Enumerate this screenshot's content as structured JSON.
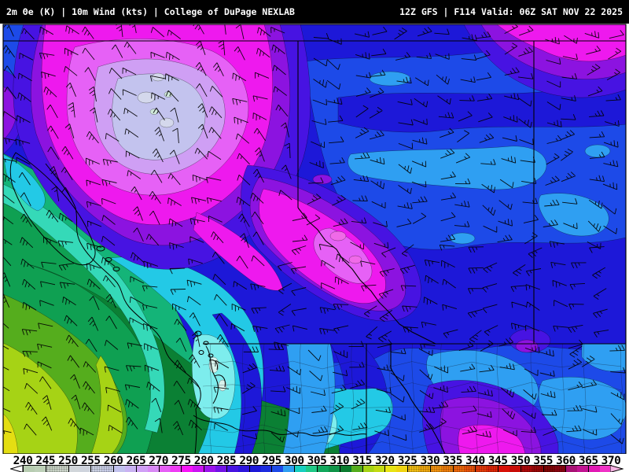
{
  "header": {
    "left_title": "2m Θe (K) | 10m Wind (kts) | College of DuPage NEXLAB",
    "right_title": "12Z GFS | F114 Valid: 06Z SAT NOV 22 2025"
  },
  "map": {
    "field": "2m Equivalent Potential Temperature (K)",
    "overlay": "10m Wind (kts)",
    "units": "K",
    "palette": {
      "dark": "#1d18d8",
      "royal": "#1d4ae8",
      "sky": "#2f9ff2",
      "cyan": "#23c9e6",
      "ltcyan": "#7deded",
      "paleteal": "#d8f2ec",
      "mint": "#35d9b8",
      "teal": "#14b478",
      "seagreen": "#0fa052",
      "dkgreen": "#0b8034",
      "grass": "#55ad1d",
      "ygreen": "#a6d315",
      "yellow": "#e4de12",
      "indigo": "#4713e2",
      "violet": "#8c13e0",
      "purple": "#6614d8",
      "magenta": "#ee19ee",
      "orchid": "#e661f6",
      "paleorchid": "#cf9ff4",
      "periwinkle": "#c3c3ee",
      "palegray": "#d4d8ec",
      "palemint": "#cfe8da",
      "pink": "#f06ae8"
    }
  },
  "colorbar": {
    "tick_labels": [
      "240",
      "245",
      "250",
      "255",
      "260",
      "265",
      "270",
      "275",
      "280",
      "285",
      "290",
      "295",
      "300",
      "305",
      "310",
      "315",
      "320",
      "325",
      "330",
      "335",
      "340",
      "345",
      "350",
      "355",
      "360",
      "365",
      "370"
    ],
    "arrow_left_color": "#ffffff",
    "arrow_right_color": "#f6b2e2",
    "segments": [
      {
        "value": 240,
        "c1": "#b7ccb1",
        "c2": "#bdd0b8",
        "stipple": false
      },
      {
        "value": 245,
        "c1": "#c6d1c3",
        "c2": "#cbd4c9",
        "stipple": true
      },
      {
        "value": 250,
        "c1": "#d1d6da",
        "c2": "#cfd4dd",
        "stipple": false
      },
      {
        "value": 255,
        "c1": "#cbd1e4",
        "c2": "#c8cde8",
        "stipple": true
      },
      {
        "value": 260,
        "c1": "#c2c2ee",
        "c2": "#c9b2f2",
        "stipple": false
      },
      {
        "value": 265,
        "c1": "#d0a0f6",
        "c2": "#d989f5",
        "stipple": false
      },
      {
        "value": 270,
        "c1": "#e65ff6",
        "c2": "#ef3df5",
        "stipple": false
      },
      {
        "value": 275,
        "c1": "#f813f8",
        "c2": "#cc13f2",
        "stipple": false
      },
      {
        "value": 280,
        "c1": "#9b13ec",
        "c2": "#7213e6",
        "stipple": false
      },
      {
        "value": 285,
        "c1": "#4713e2",
        "c2": "#2e16dd",
        "stipple": false
      },
      {
        "value": 290,
        "c1": "#1d18d8",
        "c2": "#1d2ce0",
        "stipple": false
      },
      {
        "value": 295,
        "c1": "#1d4ae8",
        "c2": "#2f9ff2",
        "stipple": false
      },
      {
        "value": 300,
        "c1": "#17cfc0",
        "c2": "#1fc987",
        "stipple": false
      },
      {
        "value": 305,
        "c1": "#12a85c",
        "c2": "#0f9448",
        "stipple": false
      },
      {
        "value": 310,
        "c1": "#0b7c30",
        "c2": "#55ad1d",
        "stipple": false
      },
      {
        "value": 315,
        "c1": "#a6d315",
        "c2": "#c3da12",
        "stipple": false
      },
      {
        "value": 320,
        "c1": "#e8e414",
        "c2": "#f0d411",
        "stipple": false
      },
      {
        "value": 325,
        "c1": "#f0bc12",
        "c2": "#eea80e",
        "stipple": true
      },
      {
        "value": 330,
        "c1": "#f2920e",
        "c2": "#ee7c0a",
        "stipple": true
      },
      {
        "value": 335,
        "c1": "#ee680a",
        "c2": "#ea5208",
        "stipple": true
      },
      {
        "value": 340,
        "c1": "#e43a08",
        "c2": "#de2606",
        "stipple": true
      },
      {
        "value": 345,
        "c1": "#d81208",
        "c2": "#c80c06",
        "stipple": false
      },
      {
        "value": 350,
        "c1": "#ae0808",
        "c2": "#9a0606",
        "stipple": true
      },
      {
        "value": 355,
        "c1": "#800404",
        "c2": "#8a0410",
        "stipple": true
      },
      {
        "value": 360,
        "c1": "#a81274",
        "c2": "#c21492",
        "stipple": false
      },
      {
        "value": 365,
        "c1": "#e219b4",
        "c2": "#f032c6",
        "stipple": false
      }
    ]
  }
}
